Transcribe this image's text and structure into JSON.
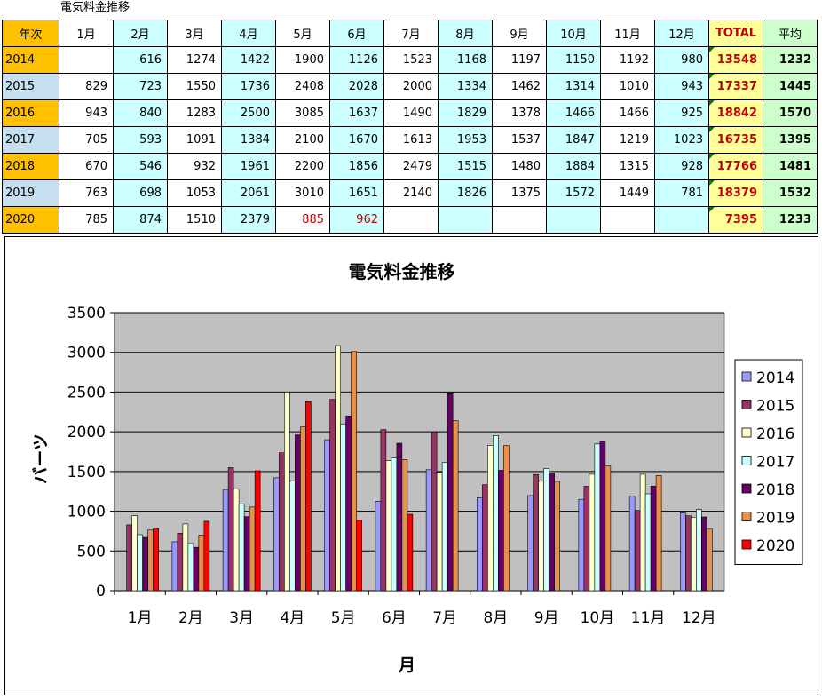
{
  "sheet": {
    "title": "電気料金推移",
    "header": [
      "年次",
      "1月",
      "2月",
      "3月",
      "4月",
      "5月",
      "6月",
      "7月",
      "8月",
      "9月",
      "10月",
      "11月",
      "12月",
      "TOTAL",
      "平均"
    ],
    "rows": [
      {
        "year": "2014",
        "cells": [
          "",
          "616",
          "1274",
          "1422",
          "1900",
          "1126",
          "1523",
          "1168",
          "1197",
          "1150",
          "1192",
          "980"
        ],
        "total": "13548",
        "avg": "1232"
      },
      {
        "year": "2015",
        "cells": [
          "829",
          "723",
          "1550",
          "1736",
          "2408",
          "2028",
          "2000",
          "1334",
          "1462",
          "1314",
          "1010",
          "943"
        ],
        "total": "17337",
        "avg": "1445"
      },
      {
        "year": "2016",
        "cells": [
          "943",
          "840",
          "1283",
          "2500",
          "3085",
          "1637",
          "1490",
          "1829",
          "1378",
          "1466",
          "1466",
          "925"
        ],
        "total": "18842",
        "avg": "1570"
      },
      {
        "year": "2017",
        "cells": [
          "705",
          "593",
          "1091",
          "1384",
          "2100",
          "1670",
          "1613",
          "1953",
          "1537",
          "1847",
          "1219",
          "1023"
        ],
        "total": "16735",
        "avg": "1395"
      },
      {
        "year": "2018",
        "cells": [
          "670",
          "546",
          "932",
          "1961",
          "2200",
          "1856",
          "2479",
          "1515",
          "1480",
          "1884",
          "1315",
          "928"
        ],
        "total": "17766",
        "avg": "1481"
      },
      {
        "year": "2019",
        "cells": [
          "763",
          "698",
          "1053",
          "2061",
          "3010",
          "1651",
          "2140",
          "1826",
          "1375",
          "1572",
          "1449",
          "781"
        ],
        "total": "18379",
        "avg": "1532"
      },
      {
        "year": "2020",
        "cells": [
          "785",
          "874",
          "1510",
          "2379",
          "885",
          "962",
          "",
          "",
          "",
          "",
          "",
          ""
        ],
        "total": "7395",
        "avg": "1233"
      }
    ],
    "red_cells_2020": [
      "885",
      "962"
    ]
  },
  "colors": {
    "header_orange": "#ffc000",
    "row_blue": "#c5dff0",
    "col_cyan": "#ccffff",
    "total_bg": "#ffff99",
    "avg_bg": "#ccffcc",
    "total_text": "#c00000",
    "plot_bg": "#c0c0c0"
  },
  "chart_data": {
    "type": "bar",
    "title": "電気料金推移",
    "xlabel": "月",
    "ylabel": "バーツ",
    "ylim": [
      0,
      3500
    ],
    "yticks": [
      "0",
      "500",
      "1000",
      "1500",
      "2000",
      "2500",
      "3000",
      "3500"
    ],
    "grid": true,
    "legend_position": "right",
    "categories": [
      "1月",
      "2月",
      "3月",
      "4月",
      "5月",
      "6月",
      "7月",
      "8月",
      "9月",
      "10月",
      "11月",
      "12月"
    ],
    "series": [
      {
        "name": "2014",
        "color": "#9999ff",
        "values": [
          null,
          616,
          1274,
          1422,
          1900,
          1126,
          1523,
          1168,
          1197,
          1150,
          1192,
          980
        ]
      },
      {
        "name": "2015",
        "color": "#993366",
        "values": [
          829,
          723,
          1550,
          1736,
          2408,
          2028,
          2000,
          1334,
          1462,
          1314,
          1010,
          943
        ]
      },
      {
        "name": "2016",
        "color": "#ffffcc",
        "values": [
          943,
          840,
          1283,
          2500,
          3085,
          1637,
          1490,
          1829,
          1378,
          1466,
          1466,
          925
        ]
      },
      {
        "name": "2017",
        "color": "#ccffff",
        "values": [
          705,
          593,
          1091,
          1384,
          2100,
          1670,
          1613,
          1953,
          1537,
          1847,
          1219,
          1023
        ]
      },
      {
        "name": "2018",
        "color": "#660066",
        "values": [
          670,
          546,
          932,
          1961,
          2200,
          1856,
          2479,
          1515,
          1480,
          1884,
          1315,
          928
        ]
      },
      {
        "name": "2019",
        "color": "#e6914d",
        "values": [
          763,
          698,
          1053,
          2061,
          3010,
          1651,
          2140,
          1826,
          1375,
          1572,
          1449,
          781
        ]
      },
      {
        "name": "2020",
        "color": "#ff0000",
        "values": [
          785,
          874,
          1510,
          2379,
          885,
          962,
          null,
          null,
          null,
          null,
          null,
          null
        ]
      }
    ]
  }
}
